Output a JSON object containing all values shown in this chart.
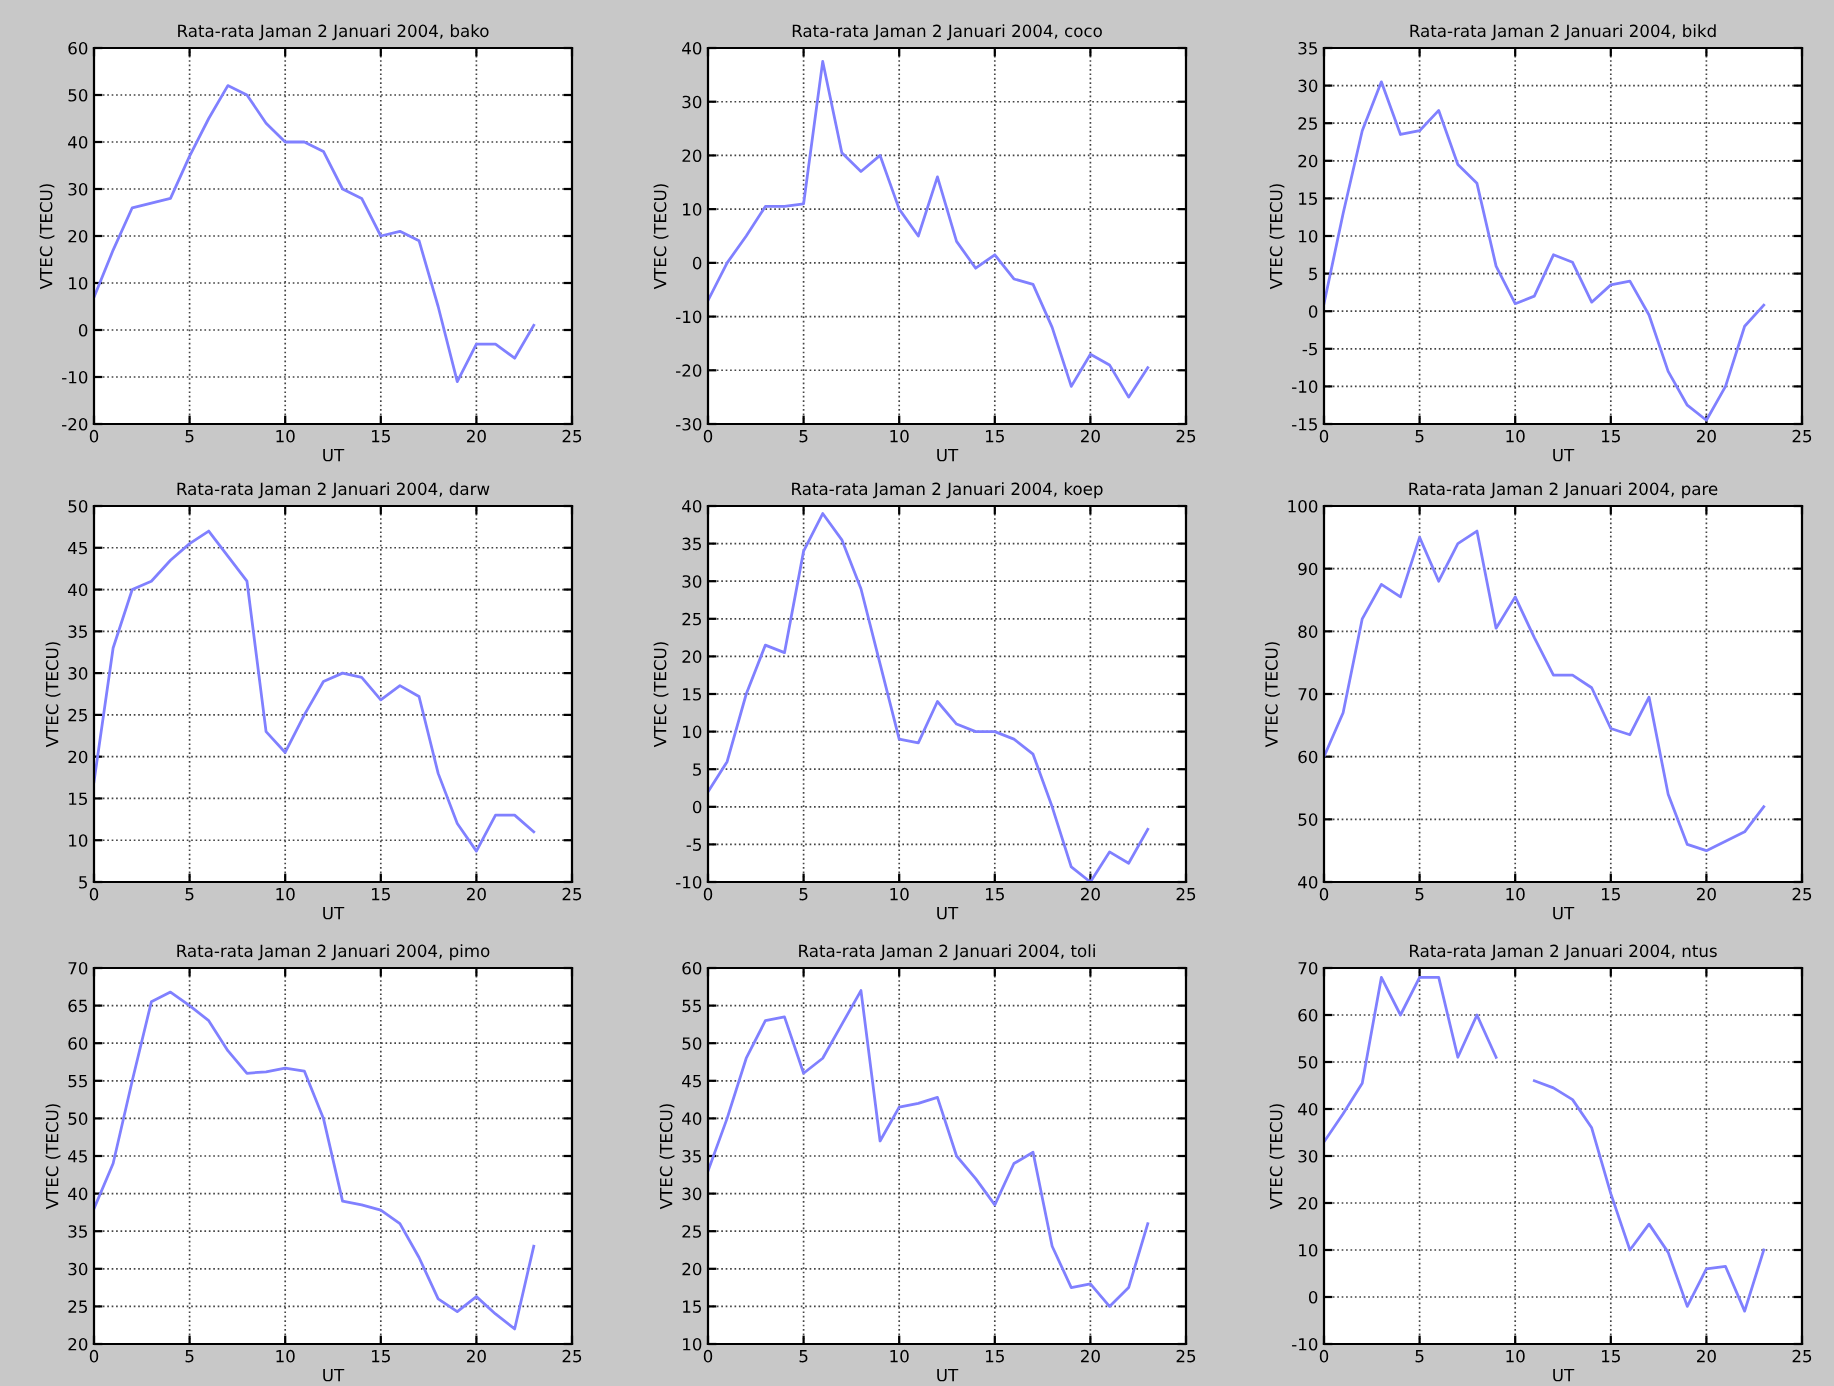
{
  "chart_data": [
    {
      "type": "line",
      "title": "Rata-rata Jaman 2 Januari 2004, bako",
      "xlabel": "UT",
      "ylabel": "VTEC (TECU)",
      "x": [
        0,
        1,
        2,
        3,
        4,
        5,
        6,
        7,
        8,
        9,
        10,
        11,
        12,
        13,
        14,
        15,
        16,
        17,
        18,
        19,
        20,
        21,
        22,
        23
      ],
      "series": [
        {
          "color": "#8080ff",
          "values": [
            7,
            17,
            26,
            27,
            28,
            37,
            45,
            52,
            50,
            44,
            40,
            40,
            38,
            30,
            28,
            20,
            21,
            19,
            5,
            -11,
            -3,
            -3,
            -6,
            1
          ]
        }
      ],
      "xlim": [
        0,
        25
      ],
      "xticks": [
        0,
        5,
        10,
        15,
        20,
        25
      ],
      "ylim": [
        -20,
        60
      ],
      "yticks": [
        -20,
        -10,
        0,
        10,
        20,
        30,
        40,
        50,
        60
      ],
      "grid": true
    },
    {
      "type": "line",
      "title": "Rata-rata Jaman 2 Januari 2004, coco",
      "xlabel": "UT",
      "ylabel": "VTEC (TECU)",
      "x": [
        0,
        1,
        2,
        3,
        4,
        5,
        6,
        7,
        8,
        9,
        10,
        11,
        12,
        13,
        14,
        15,
        16,
        17,
        18,
        19,
        20,
        21,
        22,
        23
      ],
      "series": [
        {
          "color": "#8080ff",
          "values": [
            -7,
            0,
            5,
            10.5,
            10.5,
            11,
            37.5,
            20.5,
            17,
            20,
            10,
            5,
            16,
            4,
            -1,
            1.5,
            -3,
            -4,
            -12,
            -23,
            -17,
            -19,
            -25,
            -19.5
          ]
        }
      ],
      "xlim": [
        0,
        25
      ],
      "xticks": [
        0,
        5,
        10,
        15,
        20,
        25
      ],
      "ylim": [
        -30,
        40
      ],
      "yticks": [
        -30,
        -20,
        -10,
        0,
        10,
        20,
        30,
        40
      ],
      "grid": true
    },
    {
      "type": "line",
      "title": "Rata-rata Jaman 2 Januari 2004, bikd",
      "xlabel": "UT",
      "ylabel": "VTEC (TECU)",
      "x": [
        0,
        1,
        2,
        3,
        4,
        5,
        6,
        7,
        8,
        9,
        10,
        11,
        12,
        13,
        14,
        15,
        16,
        17,
        18,
        19,
        20,
        21,
        22,
        23
      ],
      "series": [
        {
          "color": "#8080ff",
          "values": [
            1,
            13,
            24,
            30.5,
            23.5,
            24,
            26.7,
            19.5,
            17,
            6,
            1,
            2,
            7.5,
            6.5,
            1.2,
            3.5,
            4,
            -0.5,
            -8,
            -12.5,
            -14.5,
            -10,
            -2,
            0.8
          ]
        }
      ],
      "xlim": [
        0,
        25
      ],
      "xticks": [
        0,
        5,
        10,
        15,
        20,
        25
      ],
      "ylim": [
        -15,
        35
      ],
      "yticks": [
        -15,
        -10,
        -5,
        0,
        5,
        10,
        15,
        20,
        25,
        30,
        35
      ],
      "grid": true
    },
    {
      "type": "line",
      "title": "Rata-rata Jaman 2 Januari 2004, darw",
      "xlabel": "UT",
      "ylabel": "VTEC (TECU)",
      "x": [
        0,
        1,
        2,
        3,
        4,
        5,
        6,
        7,
        8,
        9,
        10,
        11,
        12,
        13,
        14,
        15,
        16,
        17,
        18,
        19,
        20,
        21,
        22,
        23
      ],
      "series": [
        {
          "color": "#8080ff",
          "values": [
            17,
            33,
            40,
            41,
            43.5,
            45.5,
            47,
            44,
            41,
            23,
            20.5,
            25,
            29,
            30,
            29.5,
            26.8,
            28.5,
            27.2,
            18,
            12,
            8.7,
            13,
            13,
            11
          ]
        }
      ],
      "xlim": [
        0,
        25
      ],
      "xticks": [
        0,
        5,
        10,
        15,
        20,
        25
      ],
      "ylim": [
        5,
        50
      ],
      "yticks": [
        5,
        10,
        15,
        20,
        25,
        30,
        35,
        40,
        45,
        50
      ],
      "grid": true
    },
    {
      "type": "line",
      "title": "Rata-rata Jaman 2 Januari 2004, koep",
      "xlabel": "UT",
      "ylabel": "VTEC (TECU)",
      "x": [
        0,
        1,
        2,
        3,
        4,
        5,
        6,
        7,
        8,
        9,
        10,
        11,
        12,
        13,
        14,
        15,
        16,
        17,
        18,
        19,
        20,
        21,
        22,
        23
      ],
      "series": [
        {
          "color": "#8080ff",
          "values": [
            2,
            6,
            15,
            21.5,
            20.5,
            34,
            39,
            35.5,
            29,
            19,
            9,
            8.5,
            14,
            11,
            10,
            10,
            9,
            7,
            0,
            -8,
            -10,
            -6,
            -7.5,
            -3
          ]
        }
      ],
      "xlim": [
        0,
        25
      ],
      "xticks": [
        0,
        5,
        10,
        15,
        20,
        25
      ],
      "ylim": [
        -10,
        40
      ],
      "yticks": [
        -10,
        -5,
        0,
        5,
        10,
        15,
        20,
        25,
        30,
        35,
        40
      ],
      "grid": true
    },
    {
      "type": "line",
      "title": "Rata-rata Jaman 2 Januari 2004, pare",
      "xlabel": "UT",
      "ylabel": "VTEC (TECU)",
      "x": [
        0,
        1,
        2,
        3,
        4,
        5,
        6,
        7,
        8,
        9,
        10,
        11,
        12,
        13,
        14,
        15,
        16,
        17,
        18,
        19,
        20,
        21,
        22,
        23
      ],
      "series": [
        {
          "color": "#8080ff",
          "values": [
            60,
            67,
            82,
            87.5,
            85.5,
            95,
            88,
            94,
            96,
            80.5,
            85.5,
            79,
            73,
            73,
            71,
            64.5,
            63.5,
            69.5,
            54,
            46,
            45,
            46.5,
            48,
            52
          ]
        }
      ],
      "xlim": [
        0,
        25
      ],
      "xticks": [
        0,
        5,
        10,
        15,
        20,
        25
      ],
      "ylim": [
        40,
        100
      ],
      "yticks": [
        40,
        50,
        60,
        70,
        80,
        90,
        100
      ],
      "grid": true
    },
    {
      "type": "line",
      "title": "Rata-rata Jaman 2 Januari 2004, pimo",
      "xlabel": "UT",
      "ylabel": "VTEC (TECU)",
      "x": [
        0,
        1,
        2,
        3,
        4,
        5,
        6,
        7,
        8,
        9,
        10,
        11,
        12,
        13,
        14,
        15,
        16,
        17,
        18,
        19,
        20,
        21,
        22,
        23
      ],
      "series": [
        {
          "color": "#8080ff",
          "values": [
            38,
            44,
            55,
            65.5,
            66.8,
            65,
            63,
            59,
            56,
            56.2,
            56.7,
            56.3,
            50,
            39,
            38.5,
            37.8,
            36,
            31.5,
            26,
            24.3,
            26.3,
            24,
            22,
            33
          ]
        }
      ],
      "xlim": [
        0,
        25
      ],
      "xticks": [
        0,
        5,
        10,
        15,
        20,
        25
      ],
      "ylim": [
        20,
        70
      ],
      "yticks": [
        20,
        25,
        30,
        35,
        40,
        45,
        50,
        55,
        60,
        65,
        70
      ],
      "grid": true
    },
    {
      "type": "line",
      "title": "Rata-rata Jaman 2 Januari 2004, toli",
      "xlabel": "UT",
      "ylabel": "VTEC (TECU)",
      "x": [
        0,
        1,
        2,
        3,
        4,
        5,
        6,
        7,
        8,
        9,
        10,
        11,
        12,
        13,
        14,
        15,
        16,
        17,
        18,
        19,
        20,
        21,
        22,
        23
      ],
      "series": [
        {
          "color": "#8080ff",
          "values": [
            33,
            40,
            48,
            53,
            53.5,
            46,
            48,
            52.5,
            57,
            37,
            41.5,
            42,
            42.8,
            35,
            32,
            28.5,
            34,
            35.5,
            23,
            17.5,
            18,
            15,
            17.5,
            26
          ]
        }
      ],
      "xlim": [
        0,
        25
      ],
      "xticks": [
        0,
        5,
        10,
        15,
        20,
        25
      ],
      "ylim": [
        10,
        60
      ],
      "yticks": [
        10,
        15,
        20,
        25,
        30,
        35,
        40,
        45,
        50,
        55,
        60
      ],
      "grid": true
    },
    {
      "type": "line",
      "title": "Rata-rata Jaman 2 Januari 2004, ntus",
      "xlabel": "UT",
      "ylabel": "VTEC (TECU)",
      "x": [
        0,
        1,
        2,
        3,
        4,
        5,
        6,
        7,
        8,
        9,
        10,
        11,
        12,
        13,
        14,
        15,
        16,
        17,
        18,
        19,
        20,
        21,
        22,
        23
      ],
      "series": [
        {
          "color": "#8080ff",
          "values": [
            33,
            39,
            45.5,
            68,
            60,
            68,
            68,
            51,
            60,
            51,
            null,
            46,
            44.5,
            42,
            36,
            22,
            10,
            15.5,
            9.5,
            -2,
            6,
            6.5,
            -3,
            10
          ]
        }
      ],
      "xlim": [
        0,
        25
      ],
      "xticks": [
        0,
        5,
        10,
        15,
        20,
        25
      ],
      "ylim": [
        -10,
        70
      ],
      "yticks": [
        -10,
        0,
        10,
        20,
        30,
        40,
        50,
        60,
        70
      ],
      "grid": true
    }
  ]
}
